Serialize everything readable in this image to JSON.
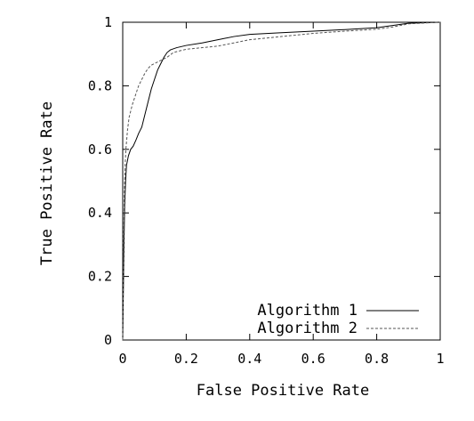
{
  "chart_data": {
    "type": "line",
    "title": "",
    "xlabel": "False Positive Rate",
    "ylabel": "True Positive Rate",
    "xlim": [
      0,
      1
    ],
    "ylim": [
      0,
      1
    ],
    "x_ticks": [
      "0",
      "0.2",
      "0.4",
      "0.6",
      "0.8",
      "1"
    ],
    "y_ticks": [
      "0",
      "0.2",
      "0.4",
      "0.6",
      "0.8",
      "1"
    ],
    "grid": false,
    "legend_position": "bottom-right",
    "series": [
      {
        "name": "Algorithm 1",
        "line_style": "solid",
        "color": "#000000",
        "points": [
          [
            0,
            0
          ],
          [
            0.002,
            0.15
          ],
          [
            0.004,
            0.3
          ],
          [
            0.006,
            0.42
          ],
          [
            0.009,
            0.5
          ],
          [
            0.012,
            0.55
          ],
          [
            0.018,
            0.58
          ],
          [
            0.025,
            0.6
          ],
          [
            0.033,
            0.61
          ],
          [
            0.042,
            0.63
          ],
          [
            0.05,
            0.65
          ],
          [
            0.06,
            0.67
          ],
          [
            0.07,
            0.71
          ],
          [
            0.08,
            0.75
          ],
          [
            0.09,
            0.79
          ],
          [
            0.1,
            0.82
          ],
          [
            0.11,
            0.85
          ],
          [
            0.12,
            0.87
          ],
          [
            0.13,
            0.89
          ],
          [
            0.14,
            0.905
          ],
          [
            0.15,
            0.913
          ],
          [
            0.17,
            0.92
          ],
          [
            0.2,
            0.927
          ],
          [
            0.25,
            0.935
          ],
          [
            0.3,
            0.945
          ],
          [
            0.35,
            0.955
          ],
          [
            0.4,
            0.962
          ],
          [
            0.5,
            0.967
          ],
          [
            0.6,
            0.972
          ],
          [
            0.7,
            0.977
          ],
          [
            0.8,
            0.983
          ],
          [
            0.85,
            0.99
          ],
          [
            0.9,
            0.997
          ],
          [
            1,
            1
          ]
        ]
      },
      {
        "name": "Algorithm 2",
        "line_style": "dashed",
        "color": "#555555",
        "points": [
          [
            0,
            0
          ],
          [
            0.002,
            0.2
          ],
          [
            0.004,
            0.4
          ],
          [
            0.006,
            0.5
          ],
          [
            0.008,
            0.56
          ],
          [
            0.01,
            0.6
          ],
          [
            0.015,
            0.66
          ],
          [
            0.02,
            0.7
          ],
          [
            0.03,
            0.74
          ],
          [
            0.04,
            0.77
          ],
          [
            0.05,
            0.8
          ],
          [
            0.06,
            0.82
          ],
          [
            0.07,
            0.84
          ],
          [
            0.08,
            0.855
          ],
          [
            0.09,
            0.865
          ],
          [
            0.1,
            0.87
          ],
          [
            0.12,
            0.88
          ],
          [
            0.14,
            0.89
          ],
          [
            0.16,
            0.905
          ],
          [
            0.2,
            0.915
          ],
          [
            0.25,
            0.92
          ],
          [
            0.3,
            0.925
          ],
          [
            0.35,
            0.935
          ],
          [
            0.4,
            0.945
          ],
          [
            0.5,
            0.955
          ],
          [
            0.6,
            0.965
          ],
          [
            0.7,
            0.972
          ],
          [
            0.8,
            0.978
          ],
          [
            0.85,
            0.985
          ],
          [
            0.9,
            0.995
          ],
          [
            1,
            1
          ]
        ]
      }
    ]
  }
}
